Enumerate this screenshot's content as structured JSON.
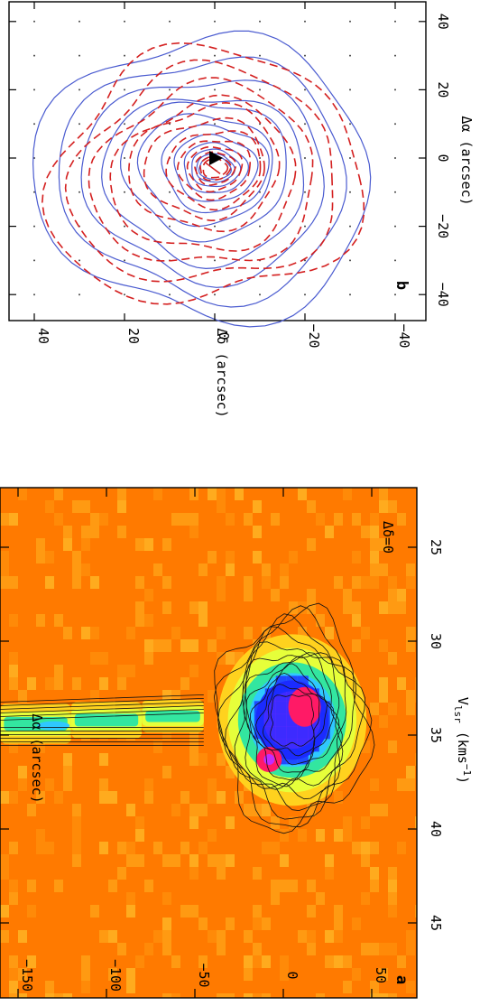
{
  "chart_data": [
    {
      "panel_label": "b",
      "type": "contour",
      "xlabel": "Δα (arcsec)",
      "ylabel": "Δδ (arcsec)",
      "xlim": [
        40,
        -40
      ],
      "ylim": [
        -45,
        45
      ],
      "x_ticks": [
        "40",
        "20",
        "0",
        "−20",
        "−40"
      ],
      "y_ticks": [
        "40",
        "20",
        "0",
        "−20",
        "−40"
      ],
      "grid": true,
      "marker": {
        "shape": "filled-triangle",
        "x": -3,
        "y": 0
      },
      "cross": {
        "x": -3,
        "y": 0
      },
      "series": [
        {
          "style": "solid",
          "color": "#4a5bd0",
          "levels": 12
        },
        {
          "style": "dashed",
          "color": "#d42020",
          "levels": 12
        }
      ]
    },
    {
      "panel_label": "a",
      "type": "heatmap",
      "annotation": "Δδ=0",
      "xlabel": "V_lsr (kms⁻¹)",
      "ylabel": "Δα (arcsec)",
      "xlim": [
        23.5,
        46.5
      ],
      "ylim": [
        75,
        -160
      ],
      "x_ticks": [
        "25",
        "30",
        "35",
        "40",
        "45"
      ],
      "y_ticks": [
        "−150",
        "−100",
        "−50",
        "0",
        "50"
      ],
      "colormap": [
        "#ff7a00",
        "#ffd21e",
        "#e6ff3a",
        "#33e6a0",
        "#2fc8ff",
        "#1b2cff",
        "#c02cff",
        "#ff1a66"
      ],
      "emission": [
        {
          "v": 34.5,
          "dalpha": -150,
          "peak": 0.35
        },
        {
          "v": 34.3,
          "dalpha": -110,
          "peak": 0.35
        },
        {
          "v": 34.0,
          "dalpha": -60,
          "peak": 0.3
        },
        {
          "v": 33.5,
          "dalpha": 12,
          "peak": 1.0
        },
        {
          "v": 36.3,
          "dalpha": -8,
          "peak": 0.95
        }
      ]
    }
  ]
}
